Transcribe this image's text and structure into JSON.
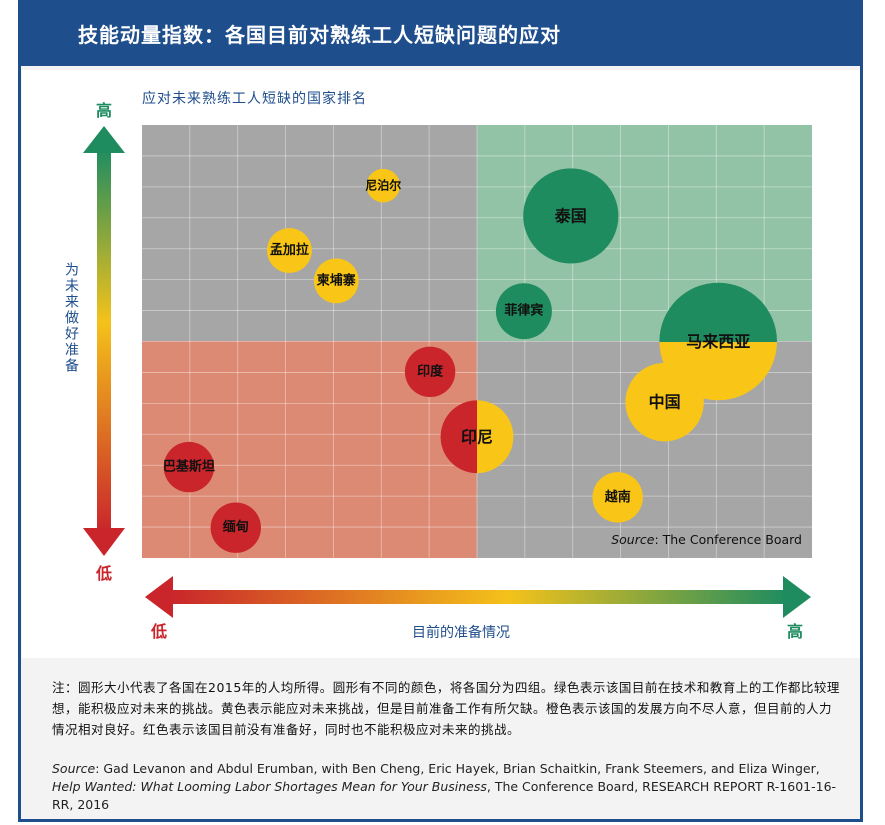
{
  "header": {
    "title": "技能动量指数：各国目前对熟练工人短缺问题的应对"
  },
  "chart_data": {
    "type": "scatter",
    "subtitle": "应对未来熟练工人短缺的国家排名",
    "ylabel": "为未来做好准备",
    "xlabel": "目前的准备情况",
    "y_high": "高",
    "y_low": "低",
    "x_low": "低",
    "x_high": "高",
    "source_note": "The Conference Board",
    "source_prefix": "Source",
    "colors": {
      "green": "#1f8c60",
      "yellow": "#f9c617",
      "red": "#c9252b",
      "orange": "#f0a01a"
    },
    "points": [
      {
        "name": "尼泊尔",
        "x": 0.36,
        "y": 0.86,
        "size": 0.6,
        "color": "yellow"
      },
      {
        "name": "孟加拉",
        "x": 0.22,
        "y": 0.71,
        "size": 0.8,
        "color": "yellow"
      },
      {
        "name": "柬埔寨",
        "x": 0.29,
        "y": 0.64,
        "size": 0.8,
        "color": "yellow"
      },
      {
        "name": "泰国",
        "x": 0.64,
        "y": 0.79,
        "size": 1.7,
        "color": "green"
      },
      {
        "name": "菲律宾",
        "x": 0.57,
        "y": 0.57,
        "size": 1.0,
        "color": "green"
      },
      {
        "name": "马来西亚",
        "x": 0.86,
        "y": 0.5,
        "size": 2.1,
        "color": "green-yellow"
      },
      {
        "name": "印度",
        "x": 0.43,
        "y": 0.43,
        "size": 0.9,
        "color": "red"
      },
      {
        "name": "中国",
        "x": 0.78,
        "y": 0.36,
        "size": 1.4,
        "color": "yellow"
      },
      {
        "name": "印尼",
        "x": 0.5,
        "y": 0.28,
        "size": 1.3,
        "color": "red-yellow"
      },
      {
        "name": "巴基斯坦",
        "x": 0.07,
        "y": 0.21,
        "size": 0.9,
        "color": "red"
      },
      {
        "name": "越南",
        "x": 0.71,
        "y": 0.14,
        "size": 0.9,
        "color": "yellow"
      },
      {
        "name": "缅甸",
        "x": 0.14,
        "y": 0.07,
        "size": 0.9,
        "color": "red"
      }
    ]
  },
  "note": "注：圆形大小代表了各国在2015年的人均所得。圆形有不同的颜色，将各国分为四组。绿色表示该国目前在技术和教育上的工作都比较理想，能积极应对未来的挑战。黄色表示能应对未来挑战，但是目前准备工作有所欠缺。橙色表示该国的发展方向不尽人意，但目前的人力情况相对良好。红色表示该国目前没有准备好，同时也不能积极应对未来的挑战。",
  "source": {
    "prefix": "Source",
    "authors": ": Gad Levanon and Abdul Erumban, with Ben Cheng, Eric Hayek, Brian Schaitkin, Frank Steemers, and Eliza Winger, ",
    "title": "Help Wanted: What Looming Labor Shortages Mean for Your Business",
    "rest": ", The Conference Board, RESEARCH REPORT R-1601-16-RR, 2016"
  }
}
